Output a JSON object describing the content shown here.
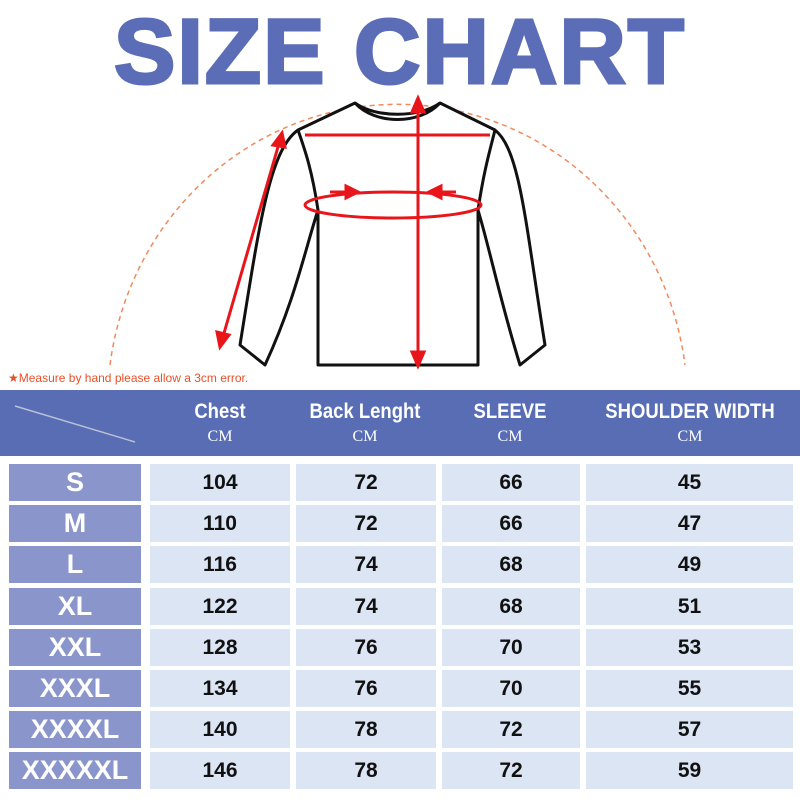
{
  "title": "SIZE CHART",
  "note": "★Measure by hand please allow a 3cm error.",
  "colors": {
    "title": "#5a6db6",
    "header": "#586db4",
    "size_cell": "#8a96cb",
    "value_cell": "#dce5f4",
    "arrow": "#e8161b",
    "arc": "#f08a5d"
  },
  "table": {
    "headers": [
      {
        "name": "Chest",
        "unit": "CM"
      },
      {
        "name": "Back Lenght",
        "unit": "CM"
      },
      {
        "name": "SLEEVE",
        "unit": "CM"
      },
      {
        "name": "SHOULDER WIDTH",
        "unit": "CM"
      }
    ],
    "rows": [
      {
        "size": "S",
        "values": [
          "104",
          "72",
          "66",
          "45"
        ]
      },
      {
        "size": "M",
        "values": [
          "110",
          "72",
          "66",
          "47"
        ]
      },
      {
        "size": "L",
        "values": [
          "116",
          "74",
          "68",
          "49"
        ]
      },
      {
        "size": "XL",
        "values": [
          "122",
          "74",
          "68",
          "51"
        ]
      },
      {
        "size": "XXL",
        "values": [
          "128",
          "76",
          "70",
          "53"
        ]
      },
      {
        "size": "XXXL",
        "values": [
          "134",
          "76",
          "70",
          "55"
        ]
      },
      {
        "size": "XXXXL",
        "values": [
          "140",
          "78",
          "72",
          "57"
        ]
      },
      {
        "size": "XXXXXL",
        "values": [
          "146",
          "78",
          "72",
          "59"
        ]
      }
    ]
  }
}
